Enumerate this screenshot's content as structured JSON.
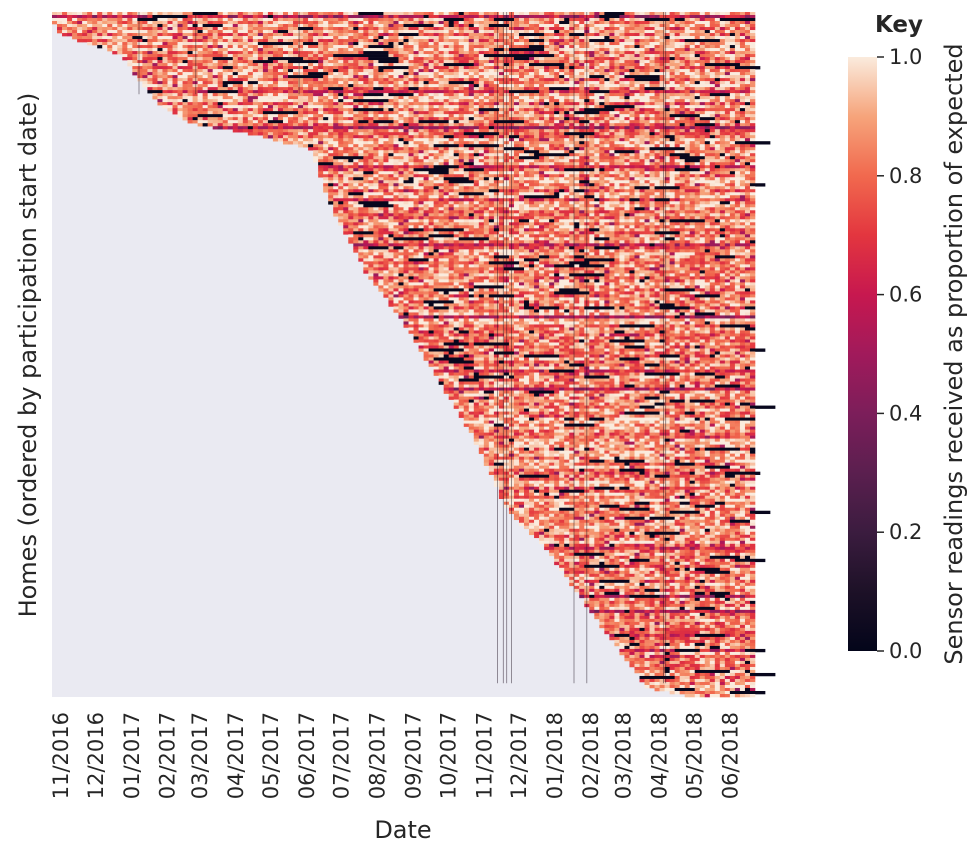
{
  "chart_data": {
    "type": "heatmap",
    "xlabel": "Date",
    "ylabel": "Homes (ordered by participation start date)",
    "x_tick_labels": [
      "11/2016",
      "12/2016",
      "01/2017",
      "02/2017",
      "03/2017",
      "04/2017",
      "05/2017",
      "06/2017",
      "07/2017",
      "08/2017",
      "09/2017",
      "10/2017",
      "11/2017",
      "12/2017",
      "01/2018",
      "02/2018",
      "03/2018",
      "04/2018",
      "05/2018",
      "06/2018"
    ],
    "x_range": [
      "2016-11-01",
      "2018-06-30"
    ],
    "y_tick_labels": [],
    "missing_color": "#eaeaf2",
    "colormap": "rocket",
    "colorbar": {
      "title": "Key",
      "label": "Sensor readings received as proportion of expected",
      "vmin": 0.0,
      "vmax": 1.0,
      "ticks": [
        "0.0",
        "0.2",
        "0.4",
        "0.6",
        "0.8",
        "1.0"
      ]
    },
    "participation_start_profile": [
      [
        "2016-11-01",
        0.0
      ],
      [
        "2016-11-10",
        0.03
      ],
      [
        "2017-01-01",
        0.06
      ],
      [
        "2017-02-01",
        0.13
      ],
      [
        "2017-03-01",
        0.16
      ],
      [
        "2017-05-01",
        0.18
      ],
      [
        "2017-06-15",
        0.2
      ],
      [
        "2017-07-01",
        0.28
      ],
      [
        "2017-08-01",
        0.38
      ],
      [
        "2017-09-01",
        0.45
      ],
      [
        "2017-11-01",
        0.62
      ],
      [
        "2017-12-01",
        0.73
      ],
      [
        "2018-01-01",
        0.78
      ],
      [
        "2018-03-01",
        0.92
      ],
      [
        "2018-04-01",
        0.99
      ],
      [
        "2018-05-01",
        1.0
      ]
    ],
    "grid": false,
    "legend_position": "right"
  }
}
